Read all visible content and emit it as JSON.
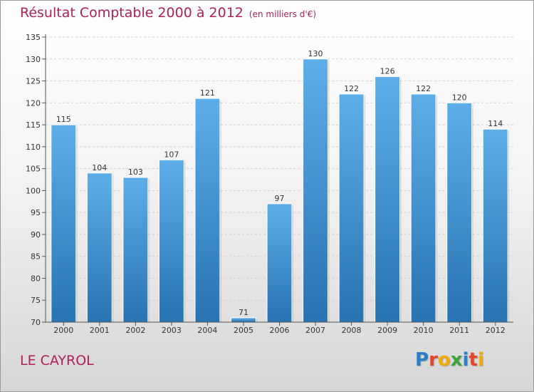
{
  "title": "Résultat Comptable 2000 à 2012",
  "unit_note": "(en milliers d'€)",
  "commune": "LE CAYROL",
  "logo": {
    "text": "Proxiti",
    "letters": [
      {
        "ch": "P",
        "color": "#2b7fc8"
      },
      {
        "ch": "r",
        "color": "#e8452d"
      },
      {
        "ch": "o",
        "color": "#f2a900"
      },
      {
        "ch": "x",
        "color": "#3aa63a"
      },
      {
        "ch": "i",
        "color": "#2b7fc8"
      },
      {
        "ch": "t",
        "color": "#e8452d"
      },
      {
        "ch": "i",
        "color": "#f2a900"
      }
    ]
  },
  "colors": {
    "bar_top": "#5daee8",
    "bar_bottom": "#2873b2",
    "accent": "#b01e5c",
    "grid": "#d0d0d0"
  },
  "chart_data": {
    "type": "bar",
    "categories": [
      "2000",
      "2001",
      "2002",
      "2003",
      "2004",
      "2005",
      "2006",
      "2007",
      "2008",
      "2009",
      "2010",
      "2011",
      "2012"
    ],
    "values": [
      115,
      104,
      103,
      107,
      121,
      71,
      97,
      130,
      122,
      126,
      122,
      120,
      114
    ],
    "ylim": [
      70,
      135
    ],
    "yticks": [
      70,
      75,
      80,
      85,
      90,
      95,
      100,
      105,
      110,
      115,
      120,
      125,
      130,
      135
    ],
    "grid": true
  }
}
